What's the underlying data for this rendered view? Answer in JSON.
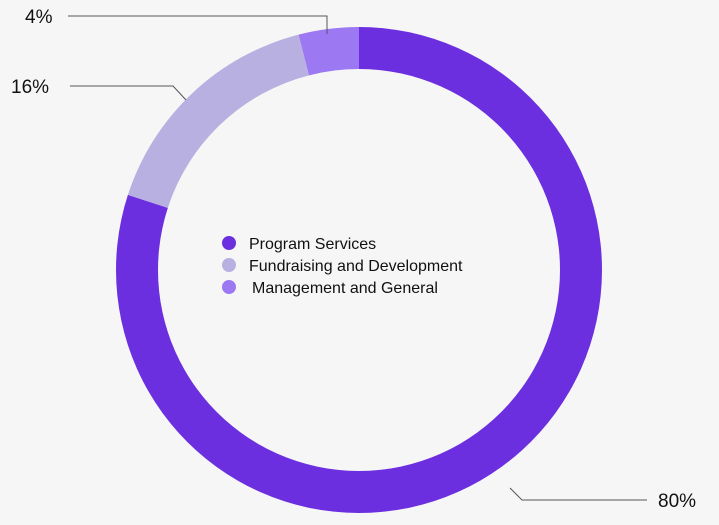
{
  "chart_data": {
    "type": "pie",
    "variant": "donut",
    "title": "",
    "legend_position": "center",
    "slices": [
      {
        "name": "Program Services",
        "value": 80,
        "label": "80%",
        "color": "#6b2fe0"
      },
      {
        "name": "Fundraising and Development",
        "value": 16,
        "label": "16%",
        "color": "#b8b0e0"
      },
      {
        "name": "Management and General",
        "value": 4,
        "label": "4%",
        "color": "#9c78f2"
      }
    ]
  },
  "background_color": "#f6f6f6"
}
